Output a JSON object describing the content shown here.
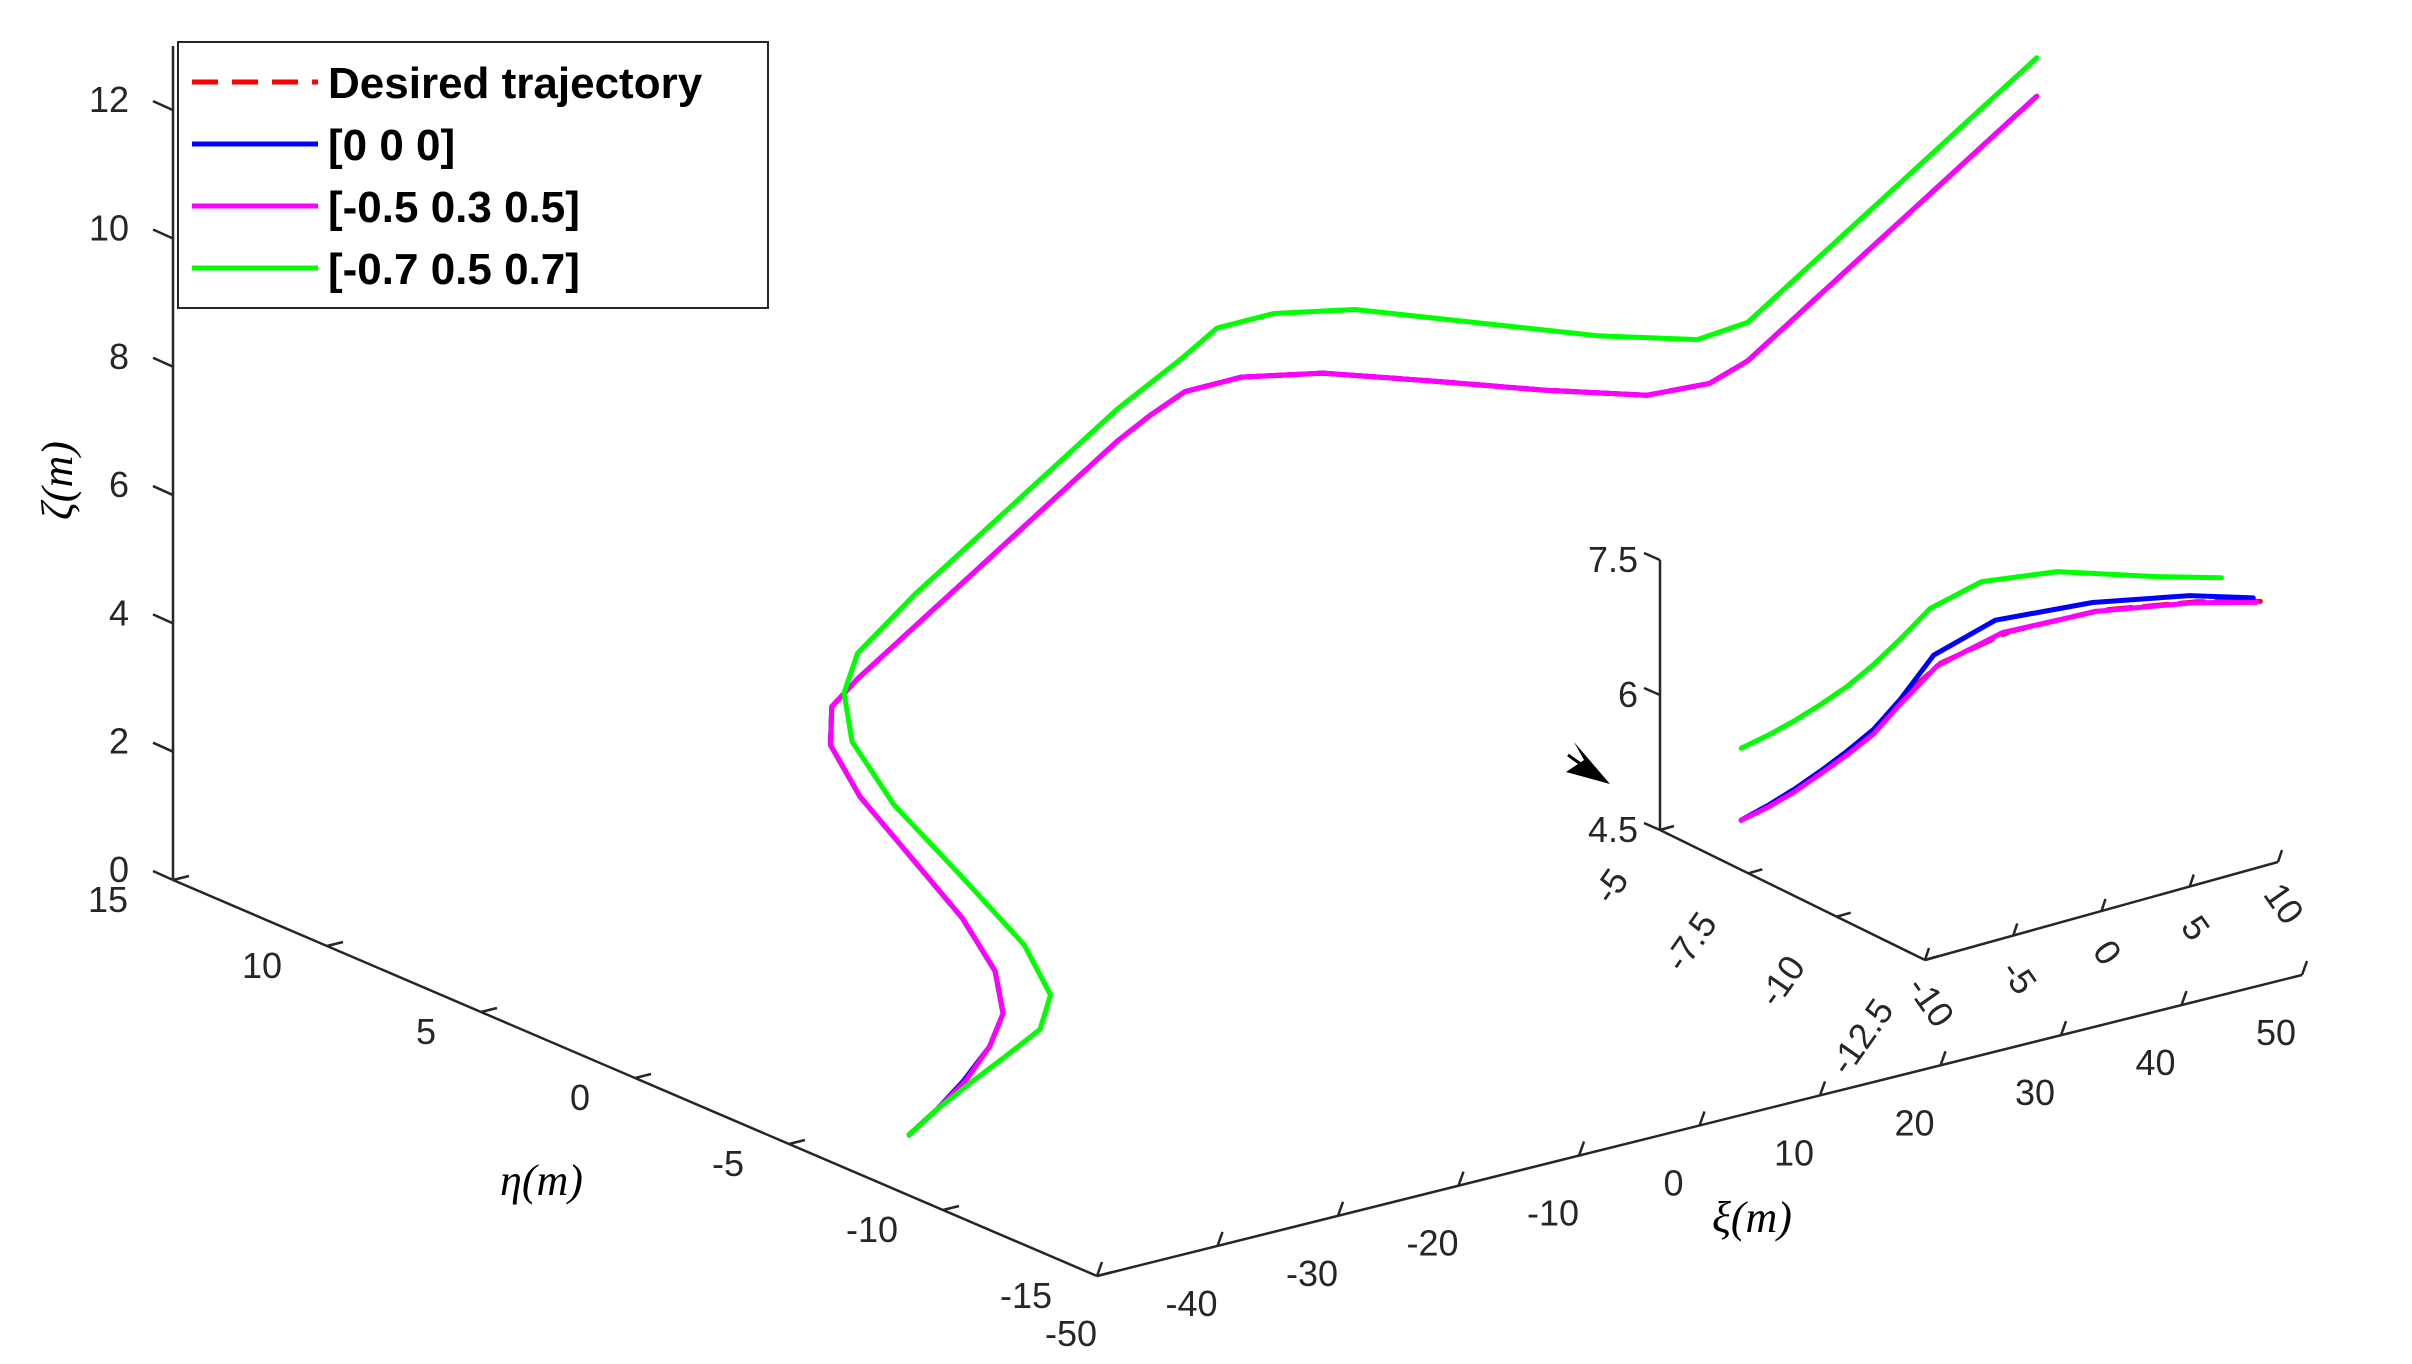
{
  "chart_data": [
    {
      "type": "line",
      "view": "3d",
      "title": "",
      "xlabel": "ξ(m)",
      "ylabel": "η(m)",
      "zlabel": "ζ(m)",
      "xlim": [
        -50,
        50
      ],
      "ylim": [
        -15,
        15
      ],
      "zlim": [
        0,
        13
      ],
      "xticks": [
        -50,
        -40,
        -30,
        -20,
        -10,
        0,
        10,
        20,
        30,
        40,
        50
      ],
      "yticks": [
        -15,
        -10,
        -5,
        0,
        5,
        10,
        15
      ],
      "zticks": [
        0,
        2,
        4,
        6,
        8,
        10,
        12
      ],
      "xtick_labels": [
        "-50",
        "-40",
        "-30",
        "-20",
        "-10",
        "0",
        "10",
        "20",
        "30",
        "40",
        "50"
      ],
      "ytick_labels": [
        "-15",
        "-10",
        "-5",
        "0",
        "5",
        "10",
        "15"
      ],
      "ztick_labels": [
        "0",
        "2",
        "4",
        "6",
        "8",
        "10",
        "12"
      ],
      "grid": false,
      "legend_position": "top-left",
      "series": [
        {
          "name": "Desired trajectory",
          "color": "#ff0000",
          "dash": true,
          "x": [
            -42.6,
            -40.2,
            -37.8,
            -35.4,
            -33.0,
            -30.6,
            -28.2,
            -25.8,
            -23.4,
            -21.0,
            -18.6,
            -16.2,
            -13.8,
            -11.4,
            -9.0,
            -6.6,
            -4.2,
            -1.8,
            0.6,
            3.0,
            5.4,
            7.8,
            10.2,
            12.6,
            15.0,
            17.4,
            19.8,
            22.2,
            24.6,
            27.0,
            29.4,
            31.8,
            34.2,
            36.6,
            39.0,
            41.4,
            43.8,
            46.2,
            48.6,
            51.0
          ],
          "y": [
            -6.0,
            -6.0,
            -5.9,
            -5.8,
            -5.3,
            -4.1,
            -2.1,
            0.5,
            3.1,
            5.0,
            5.9,
            6.0,
            6.0,
            6.0,
            6.0,
            6.0,
            6.0,
            6.0,
            6.0,
            6.0,
            6.0,
            5.9,
            5.7,
            4.8,
            3.1,
            0.5,
            -2.2,
            -4.6,
            -5.7,
            -6.0,
            -6.0,
            -6.0,
            -6.0,
            -6.0,
            -6.0,
            -6.0,
            -6.0,
            -6.0,
            -6.0,
            -6.0
          ],
          "z": [
            0.0,
            0.3,
            0.6,
            1.0,
            1.3,
            1.6,
            1.9,
            2.2,
            2.5,
            2.8,
            3.1,
            3.4,
            3.7,
            4.0,
            4.3,
            4.6,
            4.9,
            5.2,
            5.5,
            5.8,
            6.1,
            6.4,
            6.7,
            7.0,
            7.3,
            7.6,
            7.9,
            8.2,
            8.5,
            8.8,
            9.1,
            9.4,
            9.7,
            10.0,
            10.3,
            10.6,
            10.9,
            11.2,
            11.5,
            11.8
          ]
        },
        {
          "name": "[0 0 0]",
          "color": "#0000ff",
          "dash": false,
          "x": [
            -42.6,
            -40.2,
            -37.8,
            -35.4,
            -33.0,
            -30.6,
            -28.2,
            -25.8,
            -23.4,
            -21.0,
            -18.6,
            -16.2,
            -13.8,
            -11.4,
            -9.0,
            -6.6,
            -4.2,
            -1.8,
            0.6,
            3.0,
            5.4,
            7.8,
            10.2,
            12.6,
            15.0,
            17.4,
            19.8,
            22.2,
            24.6,
            27.0,
            29.4,
            31.8,
            34.2,
            36.6,
            39.0,
            41.4,
            43.8,
            46.2,
            48.6,
            51.0
          ],
          "y": [
            -6.0,
            -6.0,
            -5.9,
            -5.8,
            -5.3,
            -4.1,
            -2.1,
            0.5,
            3.1,
            5.0,
            5.9,
            6.0,
            6.0,
            6.0,
            6.0,
            6.0,
            6.0,
            6.0,
            6.0,
            6.0,
            6.0,
            5.9,
            5.7,
            4.8,
            3.1,
            0.5,
            -2.2,
            -4.6,
            -5.7,
            -6.0,
            -6.0,
            -6.0,
            -6.0,
            -6.0,
            -6.0,
            -6.0,
            -6.0,
            -6.0,
            -6.0,
            -6.0
          ],
          "z": [
            0.0,
            0.3,
            0.6,
            1.0,
            1.3,
            1.6,
            1.9,
            2.2,
            2.5,
            2.8,
            3.1,
            3.4,
            3.7,
            4.0,
            4.3,
            4.6,
            4.9,
            5.2,
            5.5,
            5.8,
            6.1,
            6.4,
            6.7,
            7.0,
            7.3,
            7.6,
            7.9,
            8.2,
            8.5,
            8.8,
            9.1,
            9.4,
            9.7,
            10.0,
            10.3,
            10.6,
            10.9,
            11.2,
            11.5,
            11.8
          ]
        },
        {
          "name": "[-0.5 0.3 0.5]",
          "color": "#ff00ff",
          "dash": false,
          "x": [
            -42.6,
            -40.2,
            -37.8,
            -35.4,
            -33.0,
            -30.6,
            -28.2,
            -25.8,
            -23.4,
            -21.0,
            -18.6,
            -16.2,
            -13.8,
            -11.4,
            -9.0,
            -6.6,
            -4.2,
            -1.8,
            0.6,
            3.0,
            5.4,
            7.8,
            10.2,
            12.6,
            15.0,
            17.4,
            19.8,
            22.2,
            24.6,
            27.0,
            29.4,
            31.8,
            34.2,
            36.6,
            39.0,
            41.4,
            43.8,
            46.2,
            48.6,
            51.0
          ],
          "y": [
            -6.0,
            -6.0,
            -5.95,
            -5.8,
            -5.3,
            -4.1,
            -2.1,
            0.5,
            3.1,
            5.0,
            5.9,
            6.0,
            6.0,
            6.0,
            6.0,
            6.0,
            6.0,
            6.0,
            6.0,
            6.0,
            6.0,
            5.9,
            5.7,
            4.8,
            3.1,
            0.5,
            -2.2,
            -4.6,
            -5.7,
            -6.0,
            -6.0,
            -6.0,
            -6.0,
            -6.0,
            -6.0,
            -6.0,
            -6.0,
            -6.0,
            -6.0,
            -6.0
          ],
          "z": [
            0.0,
            0.3,
            0.6,
            1.0,
            1.3,
            1.6,
            1.9,
            2.2,
            2.5,
            2.8,
            3.1,
            3.4,
            3.7,
            4.0,
            4.3,
            4.6,
            4.9,
            5.2,
            5.5,
            5.8,
            6.1,
            6.4,
            6.7,
            7.0,
            7.3,
            7.6,
            7.9,
            8.2,
            8.5,
            8.8,
            9.1,
            9.4,
            9.7,
            10.0,
            10.3,
            10.6,
            10.9,
            11.2,
            11.5,
            11.8
          ]
        },
        {
          "name": "[-0.7 0.5 0.7]",
          "color": "#00ff00",
          "dash": false,
          "x": [
            -42.6,
            -40.2,
            -37.8,
            -35.4,
            -33.0,
            -30.6,
            -28.2,
            -25.8,
            -23.4,
            -21.0,
            -18.6,
            -16.2,
            -13.8,
            -11.4,
            -9.0,
            -6.6,
            -4.2,
            -1.8,
            0.6,
            3.0,
            5.4,
            7.8,
            10.2,
            12.6,
            15.0,
            17.4,
            19.8,
            22.2,
            24.6,
            27.0,
            29.4,
            31.8,
            34.2,
            36.6,
            39.0,
            41.4,
            43.8,
            46.2,
            48.6,
            51.0
          ],
          "y": [
            -6.0,
            -6.0,
            -6.1,
            -6.4,
            -6.5,
            -5.9,
            -4.1,
            -1.1,
            2.0,
            4.3,
            5.5,
            6.0,
            6.0,
            6.0,
            6.0,
            6.0,
            6.0,
            6.0,
            6.0,
            6.0,
            6.0,
            5.9,
            5.8,
            5.6,
            4.7,
            3.0,
            0.0,
            -3.0,
            -5.3,
            -6.0,
            -6.0,
            -6.0,
            -6.0,
            -6.0,
            -6.0,
            -6.0,
            -6.0,
            -6.0,
            -6.0,
            -6.0
          ],
          "z": [
            0.0,
            0.3,
            0.6,
            1.0,
            1.3,
            1.6,
            1.9,
            2.25,
            2.6,
            3.0,
            3.4,
            3.8,
            4.15,
            4.5,
            4.8,
            5.1,
            5.4,
            5.7,
            6.0,
            6.3,
            6.6,
            6.9,
            7.2,
            7.6,
            7.9,
            8.2,
            8.5,
            8.8,
            9.1,
            9.4,
            9.7,
            10.0,
            10.3,
            10.6,
            10.9,
            11.2,
            11.5,
            11.8,
            12.1,
            12.4
          ]
        }
      ]
    },
    {
      "type": "line",
      "view": "3d-inset",
      "title": "",
      "xlim": [
        -10,
        10
      ],
      "ylim": [
        -12.5,
        -5
      ],
      "zlim": [
        4.5,
        7.5
      ],
      "xticks": [
        -10,
        -5,
        0,
        5,
        10
      ],
      "yticks": [
        -12.5,
        -10,
        -7.5,
        -5
      ],
      "zticks": [
        4.5,
        6,
        7.5
      ],
      "xtick_labels": [
        "-10",
        "-5",
        "0",
        "5",
        "10"
      ],
      "ytick_labels": [
        "-12.5",
        "-10",
        "-7.5",
        "-5"
      ],
      "ztick_labels": [
        "4.5",
        "6",
        "7.5"
      ],
      "grid": false,
      "series": [
        {
          "name": "Desired trajectory",
          "color": "#ff0000",
          "dash": true,
          "x": [
            -7.0,
            -5.5,
            -4.0,
            -2.5,
            -1.0,
            0.5,
            2.0,
            3.5,
            5.0,
            6.5,
            8.0,
            9.0
          ],
          "y": [
            -5.8,
            -5.8,
            -5.8,
            -5.8,
            -5.8,
            -5.8,
            -5.8,
            -6.2,
            -7.4,
            -9.2,
            -11.2,
            -12.5
          ],
          "z": [
            4.6,
            4.68,
            4.78,
            4.9,
            5.04,
            5.2,
            5.45,
            5.85,
            6.35,
            6.85,
            7.25,
            7.45
          ]
        },
        {
          "name": "[0 0 0]",
          "color": "#0000ff",
          "dash": false,
          "x": [
            -7.0,
            -5.5,
            -4.0,
            -2.5,
            -1.0,
            0.5,
            2.0,
            3.5,
            5.0,
            6.5,
            8.0,
            9.0
          ],
          "y": [
            -5.8,
            -5.8,
            -5.8,
            -5.8,
            -5.8,
            -5.8,
            -5.8,
            -6.0,
            -7.0,
            -9.0,
            -11.0,
            -12.3
          ],
          "z": [
            4.6,
            4.68,
            4.78,
            4.9,
            5.04,
            5.2,
            5.45,
            5.9,
            6.4,
            6.9,
            7.28,
            7.45
          ]
        },
        {
          "name": "[-0.5 0.3 0.5]",
          "color": "#ff00ff",
          "dash": false,
          "x": [
            -7.0,
            -5.5,
            -4.0,
            -2.5,
            -1.0,
            0.5,
            2.0,
            3.5,
            5.0,
            6.5,
            8.0,
            9.0
          ],
          "y": [
            -5.8,
            -5.8,
            -5.8,
            -5.8,
            -5.8,
            -5.8,
            -5.8,
            -6.1,
            -7.2,
            -9.1,
            -11.1,
            -12.4
          ],
          "z": [
            4.6,
            4.66,
            4.75,
            4.87,
            5.0,
            5.15,
            5.4,
            5.8,
            6.3,
            6.82,
            7.22,
            7.42
          ]
        },
        {
          "name": "[-0.7 0.5 0.7]",
          "color": "#00ff00",
          "dash": false,
          "x": [
            -7.0,
            -5.5,
            -4.0,
            -2.5,
            -1.0,
            0.5,
            2.0,
            3.5,
            5.0,
            6.5,
            8.0,
            9.0
          ],
          "y": [
            -5.8,
            -5.8,
            -5.8,
            -5.8,
            -5.8,
            -5.8,
            -5.8,
            -5.9,
            -6.6,
            -8.0,
            -10.0,
            -11.4
          ],
          "z": [
            5.4,
            5.46,
            5.54,
            5.64,
            5.76,
            5.92,
            6.12,
            6.4,
            6.75,
            7.05,
            7.3,
            7.5
          ]
        }
      ]
    }
  ]
}
